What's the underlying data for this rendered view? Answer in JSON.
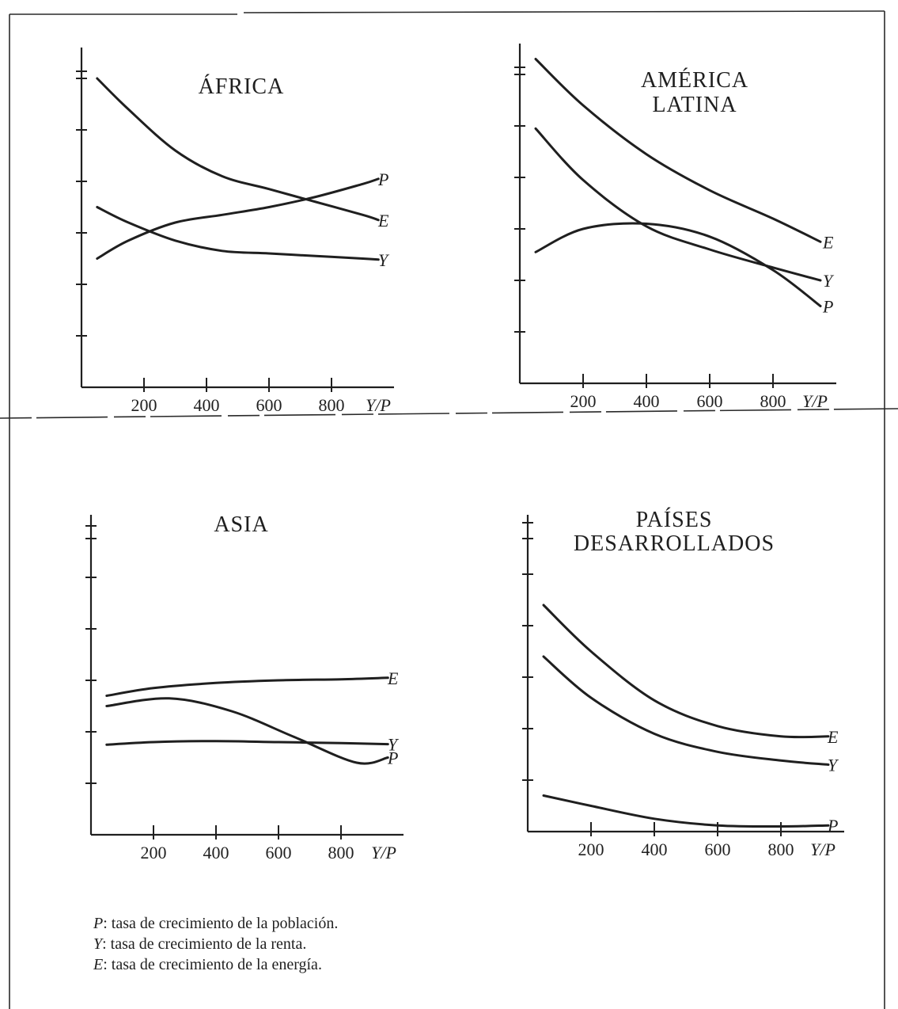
{
  "chart_data": [
    {
      "type": "line",
      "title": "ÁFRICA",
      "title_lines": [
        "ÁFRICA"
      ],
      "x_tick_labels": [
        "200",
        "400",
        "600",
        "800"
      ],
      "xlabel": "Y/P",
      "ylabel": "",
      "xlim": [
        0,
        1000
      ],
      "ylim": [
        0,
        7
      ],
      "y_ticks": [
        1,
        2,
        3,
        4,
        5,
        6
      ],
      "grid": false,
      "series": [
        {
          "name": "E",
          "x": [
            50,
            150,
            300,
            450,
            600,
            750,
            900,
            950
          ],
          "y": [
            6.0,
            5.4,
            4.6,
            4.1,
            3.85,
            3.6,
            3.35,
            3.25
          ]
        },
        {
          "name": "Y",
          "x": [
            50,
            150,
            300,
            450,
            600,
            750,
            900,
            950
          ],
          "y": [
            3.5,
            3.2,
            2.85,
            2.65,
            2.6,
            2.55,
            2.5,
            2.48
          ]
        },
        {
          "name": "P",
          "x": [
            50,
            150,
            300,
            450,
            600,
            750,
            900,
            950
          ],
          "y": [
            2.5,
            2.85,
            3.2,
            3.35,
            3.5,
            3.7,
            3.95,
            4.05
          ]
        }
      ]
    },
    {
      "type": "line",
      "title": "AMÉRICA LATINA",
      "title_lines": [
        "AMÉRICA",
        "LATINA"
      ],
      "x_tick_labels": [
        "200",
        "400",
        "600",
        "800"
      ],
      "xlabel": "Y/P",
      "ylabel": "",
      "xlim": [
        0,
        1000
      ],
      "ylim": [
        0,
        7
      ],
      "y_ticks": [
        1,
        2,
        3,
        4,
        5,
        6
      ],
      "grid": false,
      "series": [
        {
          "name": "E",
          "x": [
            50,
            200,
            400,
            600,
            800,
            950
          ],
          "y": [
            6.3,
            5.4,
            4.45,
            3.75,
            3.2,
            2.75
          ]
        },
        {
          "name": "Y",
          "x": [
            50,
            200,
            400,
            600,
            800,
            950
          ],
          "y": [
            4.95,
            3.95,
            3.05,
            2.6,
            2.25,
            2.0
          ]
        },
        {
          "name": "P",
          "x": [
            50,
            200,
            400,
            600,
            800,
            950
          ],
          "y": [
            2.55,
            3.0,
            3.1,
            2.85,
            2.2,
            1.5
          ]
        }
      ]
    },
    {
      "type": "line",
      "title": "ASIA",
      "title_lines": [
        "ASIA"
      ],
      "x_tick_labels": [
        "200",
        "400",
        "600",
        "800"
      ],
      "xlabel": "Y/P",
      "ylabel": "",
      "xlim": [
        0,
        1000
      ],
      "ylim": [
        0,
        7
      ],
      "y_ticks": [
        1,
        2,
        3,
        4,
        5,
        6
      ],
      "grid": false,
      "series": [
        {
          "name": "E",
          "x": [
            50,
            200,
            400,
            600,
            800,
            950
          ],
          "y": [
            2.7,
            2.85,
            2.95,
            3.0,
            3.02,
            3.05
          ]
        },
        {
          "name": "Y",
          "x": [
            50,
            200,
            400,
            600,
            800,
            950
          ],
          "y": [
            1.75,
            1.8,
            1.82,
            1.8,
            1.78,
            1.76
          ]
        },
        {
          "name": "P",
          "x": [
            50,
            250,
            450,
            650,
            850,
            950
          ],
          "y": [
            2.5,
            2.65,
            2.4,
            1.9,
            1.4,
            1.5
          ]
        }
      ]
    },
    {
      "type": "line",
      "title": "PAÍSES DESARROLLADOS",
      "title_lines": [
        "PAÍSES",
        "DESARROLLADOS"
      ],
      "x_tick_labels": [
        "200",
        "400",
        "600",
        "800"
      ],
      "xlabel": "Y/P",
      "ylabel": "",
      "xlim": [
        0,
        1000
      ],
      "ylim": [
        0,
        7
      ],
      "y_ticks": [
        1,
        2,
        3,
        4,
        5,
        6
      ],
      "grid": false,
      "series": [
        {
          "name": "E",
          "x": [
            50,
            200,
            400,
            600,
            800,
            950
          ],
          "y": [
            4.4,
            3.5,
            2.55,
            2.05,
            1.85,
            1.85
          ]
        },
        {
          "name": "Y",
          "x": [
            50,
            200,
            400,
            600,
            800,
            950
          ],
          "y": [
            3.4,
            2.6,
            1.9,
            1.55,
            1.38,
            1.3
          ]
        },
        {
          "name": "P",
          "x": [
            50,
            200,
            400,
            600,
            800,
            950
          ],
          "y": [
            0.7,
            0.5,
            0.25,
            0.12,
            0.1,
            0.12
          ]
        }
      ]
    }
  ],
  "legend": [
    {
      "key": "P",
      "text": ": tasa de crecimiento de la población."
    },
    {
      "key": "Y",
      "text": ": tasa de crecimiento de la renta."
    },
    {
      "key": "E",
      "text": ": tasa de crecimiento de la energía."
    }
  ]
}
